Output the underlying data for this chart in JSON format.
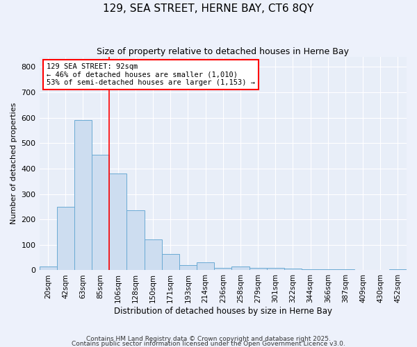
{
  "title": "129, SEA STREET, HERNE BAY, CT6 8QY",
  "subtitle": "Size of property relative to detached houses in Herne Bay",
  "xlabel": "Distribution of detached houses by size in Herne Bay",
  "ylabel": "Number of detached properties",
  "bar_color": "#cdddf0",
  "bar_edge_color": "#6aaad4",
  "background_color": "#e8eef8",
  "grid_color": "#ffffff",
  "categories": [
    "20sqm",
    "42sqm",
    "63sqm",
    "85sqm",
    "106sqm",
    "128sqm",
    "150sqm",
    "171sqm",
    "193sqm",
    "214sqm",
    "236sqm",
    "258sqm",
    "279sqm",
    "301sqm",
    "322sqm",
    "344sqm",
    "366sqm",
    "387sqm",
    "409sqm",
    "430sqm",
    "452sqm"
  ],
  "values": [
    15,
    250,
    590,
    455,
    380,
    235,
    120,
    65,
    20,
    30,
    10,
    15,
    10,
    10,
    8,
    5,
    5,
    5,
    2,
    1,
    5
  ],
  "red_line_x": 3.5,
  "annotation_text": "129 SEA STREET: 92sqm\n← 46% of detached houses are smaller (1,010)\n53% of semi-detached houses are larger (1,153) →",
  "ylim": [
    0,
    840
  ],
  "yticks": [
    0,
    100,
    200,
    300,
    400,
    500,
    600,
    700,
    800
  ],
  "footer1": "Contains HM Land Registry data © Crown copyright and database right 2025.",
  "footer2": "Contains public sector information licensed under the Open Government Licence v3.0."
}
